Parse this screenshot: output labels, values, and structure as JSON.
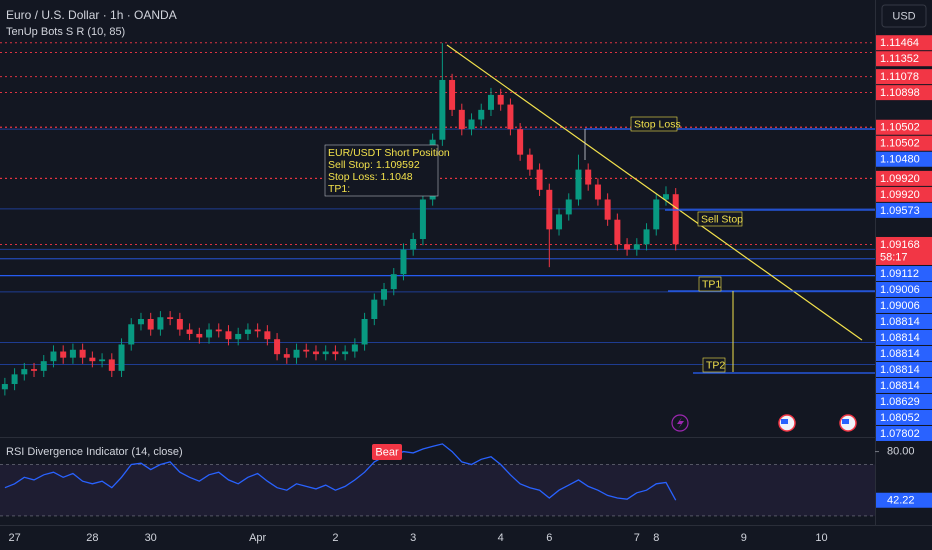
{
  "chart_data": [
    {
      "type": "candlestick",
      "title": "Euro / U.S. Dollar · 1h · OANDA",
      "subtitle": "TenUp Bots S R (10, 85)",
      "categories": [
        null,
        "27",
        null,
        null,
        null,
        null,
        null,
        null,
        null,
        "28",
        null,
        null,
        null,
        null,
        null,
        "30",
        null,
        null,
        null,
        null,
        null,
        null,
        null,
        null,
        null,
        null,
        "Apr",
        null,
        null,
        null,
        null,
        null,
        null,
        null,
        "2",
        null,
        null,
        null,
        null,
        null,
        null,
        null,
        "3",
        null,
        null,
        null,
        null,
        null,
        null,
        null,
        null,
        "4",
        null,
        null,
        null,
        null,
        "6",
        null,
        null,
        null,
        null,
        null,
        null,
        null,
        null,
        "7",
        null,
        "8",
        null,
        null,
        null,
        null,
        null,
        null,
        null,
        null,
        "9",
        null,
        null,
        null,
        null,
        null,
        null,
        null,
        "10",
        null,
        null,
        null,
        null,
        null
      ],
      "open": [
        1.0752,
        1.0758,
        1.0769,
        1.0775,
        1.0773,
        1.0784,
        1.0795,
        1.0788,
        1.0797,
        1.0788,
        1.0784,
        1.0786,
        1.0773,
        1.0803,
        1.0826,
        1.0832,
        1.082,
        1.0834,
        1.0832,
        1.082,
        1.0815,
        1.0811,
        1.082,
        1.0818,
        1.0809,
        1.0815,
        1.082,
        1.0818,
        1.0809,
        1.0792,
        1.0788,
        1.0797,
        1.0795,
        1.0792,
        1.0795,
        1.0792,
        1.0795,
        1.0803,
        1.0832,
        1.0854,
        1.0866,
        1.0883,
        1.0911,
        1.0923,
        1.0968,
        1.1036,
        1.1104,
        1.107,
        1.1048,
        1.1059,
        1.107,
        1.1087,
        1.1076,
        1.1048,
        1.1019,
        1.1002,
        1.0979,
        1.0934,
        1.0951,
        1.0968,
        1.1002,
        1.0985,
        1.0968,
        1.0945,
        1.0917,
        1.0911,
        1.0917,
        1.0934,
        1.0968,
        1.0974,
        null,
        null,
        null,
        null,
        null,
        null,
        null,
        null,
        null,
        null,
        null,
        null,
        null,
        null,
        null,
        null,
        null,
        null,
        null,
        null
      ],
      "high": [
        1.0765,
        1.0776,
        1.0782,
        1.0782,
        1.0791,
        1.0802,
        1.0802,
        1.0804,
        1.0804,
        1.0795,
        1.0793,
        1.0793,
        1.081,
        1.0833,
        1.0839,
        1.0839,
        1.0841,
        1.0841,
        1.0839,
        1.0827,
        1.0822,
        1.0827,
        1.0827,
        1.0825,
        1.0822,
        1.0827,
        1.0827,
        1.0825,
        1.0816,
        1.0799,
        1.0804,
        1.0804,
        1.0802,
        1.0802,
        1.0802,
        1.0802,
        1.081,
        1.0839,
        1.0861,
        1.0873,
        1.089,
        1.0918,
        1.093,
        1.0975,
        1.1043,
        1.1146,
        1.1111,
        1.1077,
        1.1066,
        1.1077,
        1.1095,
        1.1094,
        1.1083,
        1.1055,
        1.1026,
        1.1009,
        1.0986,
        1.0958,
        1.0975,
        1.1019,
        1.1009,
        1.0992,
        1.0975,
        1.0952,
        1.0924,
        1.0924,
        1.0941,
        1.0975,
        1.0983,
        1.0981,
        null,
        null,
        null,
        null,
        null,
        null,
        null,
        null,
        null,
        null,
        null,
        null,
        null,
        null,
        null,
        null,
        null,
        null,
        null,
        null
      ],
      "low": [
        1.0745,
        1.0751,
        1.0762,
        1.0766,
        1.0766,
        1.0777,
        1.0781,
        1.0781,
        1.0781,
        1.0777,
        1.0777,
        1.0766,
        1.0766,
        1.0796,
        1.0819,
        1.0813,
        1.0813,
        1.0825,
        1.0813,
        1.0808,
        1.0804,
        1.0804,
        1.0811,
        1.0802,
        1.0802,
        1.0808,
        1.0811,
        1.0802,
        1.0785,
        1.0781,
        1.0781,
        1.0788,
        1.0785,
        1.0785,
        1.0785,
        1.0785,
        1.0788,
        1.0796,
        1.0825,
        1.0847,
        1.0859,
        1.0876,
        1.0904,
        1.0916,
        1.0961,
        1.1029,
        1.1063,
        1.1041,
        1.1041,
        1.1052,
        1.1063,
        1.1069,
        1.1041,
        1.1012,
        1.0995,
        1.0972,
        1.0891,
        1.0927,
        1.0944,
        1.0961,
        1.0978,
        1.0961,
        1.0938,
        1.091,
        1.0904,
        1.0904,
        1.091,
        1.0927,
        1.0961,
        1.091,
        null,
        null,
        null,
        null,
        null,
        null,
        null,
        null,
        null,
        null,
        null,
        null,
        null,
        null,
        null,
        null,
        null,
        null,
        null,
        null
      ],
      "close": [
        1.0758,
        1.0769,
        1.0775,
        1.0773,
        1.0784,
        1.0795,
        1.0788,
        1.0797,
        1.0788,
        1.0784,
        1.0786,
        1.0773,
        1.0803,
        1.0826,
        1.0832,
        1.082,
        1.0834,
        1.0832,
        1.082,
        1.0815,
        1.0811,
        1.082,
        1.0818,
        1.0809,
        1.0815,
        1.082,
        1.0818,
        1.0809,
        1.0792,
        1.0788,
        1.0797,
        1.0795,
        1.0792,
        1.0795,
        1.0792,
        1.0795,
        1.0803,
        1.0832,
        1.0854,
        1.0866,
        1.0883,
        1.0911,
        1.0923,
        1.0968,
        1.1036,
        1.1104,
        1.107,
        1.1048,
        1.1059,
        1.107,
        1.1087,
        1.1076,
        1.1048,
        1.1019,
        1.1002,
        1.0979,
        1.0934,
        1.0951,
        1.0968,
        1.1002,
        1.0985,
        1.0968,
        1.0945,
        1.0917,
        1.0911,
        1.0917,
        1.0934,
        1.0968,
        1.0974,
        1.0917,
        null,
        null,
        null,
        null,
        null,
        null,
        null,
        null,
        null,
        null,
        null,
        null,
        null,
        null,
        null,
        null,
        null,
        null,
        null,
        null
      ],
      "up_color": "#089981",
      "down_color": "#f23645",
      "ylim": [
        1.07,
        1.1195
      ],
      "price_levels": [
        {
          "value": 1.11464,
          "color": "#f23645"
        },
        {
          "value": 1.11352,
          "color": "#f23645"
        },
        {
          "value": 1.11078,
          "color": "#f23645"
        },
        {
          "value": 1.10898,
          "color": "#f23645"
        },
        {
          "value": 1.10502,
          "color": "#f23645"
        },
        {
          "value": 1.10502,
          "color": "#f23645"
        },
        {
          "value": 1.1048,
          "label": "1.10480",
          "color": "#2962ff"
        },
        {
          "value": 1.0992,
          "label": "1.09920",
          "color": "#f23645"
        },
        {
          "value": 1.0992,
          "label": "1.09920",
          "color": "#f23645"
        },
        {
          "value": 1.09573,
          "color": "#2962ff"
        },
        {
          "value": 1.09168,
          "color": "#f23645",
          "countdown": "58:17"
        },
        {
          "value": 1.09112,
          "color": "#2962ff"
        },
        {
          "value": 1.09006,
          "color": "#2962ff"
        },
        {
          "value": 1.09006,
          "color": "#2962ff"
        },
        {
          "value": 1.08814,
          "color": "#2962ff"
        },
        {
          "value": 1.08814,
          "color": "#2962ff"
        },
        {
          "value": 1.08814,
          "color": "#2962ff"
        },
        {
          "value": 1.08814,
          "color": "#2962ff"
        },
        {
          "value": 1.08814,
          "color": "#2962ff"
        },
        {
          "value": 1.08629,
          "color": "#2962ff"
        },
        {
          "value": 1.08052,
          "color": "#2962ff"
        },
        {
          "value": 1.07802,
          "color": "#2962ff"
        }
      ]
    },
    {
      "type": "line",
      "title": "RSI Divergence Indicator (14, close)",
      "color": "#2962ff",
      "values": [
        52,
        55,
        60,
        58,
        62,
        64,
        60,
        63,
        57,
        55,
        57,
        52,
        60,
        70,
        71,
        66,
        70,
        72,
        64,
        60,
        57,
        62,
        64,
        58,
        55,
        60,
        63,
        57,
        52,
        50,
        55,
        53,
        51,
        54,
        50,
        53,
        58,
        64,
        72,
        76,
        77,
        80,
        79,
        82,
        84,
        86,
        80,
        72,
        70,
        74,
        76,
        70,
        62,
        55,
        52,
        50,
        44,
        50,
        54,
        58,
        53,
        50,
        46,
        44,
        43,
        48,
        50,
        55,
        56,
        42.22,
        null,
        null,
        null,
        null,
        null,
        null,
        null,
        null,
        null,
        null,
        null,
        null,
        null,
        null,
        null,
        null,
        null,
        null,
        null,
        null
      ],
      "ylim": [
        23,
        89
      ],
      "yticks": [
        {
          "value": 80,
          "label": "80.00"
        }
      ],
      "band": [
        30,
        70
      ],
      "annotation": "Bear"
    }
  ],
  "currency": "USD",
  "drawings": {
    "note": [
      "EUR/USDT Short Position",
      "Sell Stop: 1.109592",
      "Stop Loss: 1.1048",
      "TP1:"
    ],
    "stop_loss": "Stop Loss",
    "sell_stop": "Sell Stop",
    "tp1": "TP1",
    "tp2": "TP2"
  }
}
